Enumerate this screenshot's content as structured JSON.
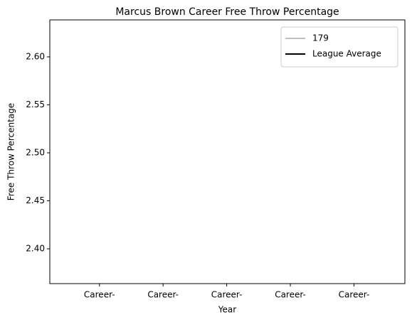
{
  "chart_data": {
    "type": "line",
    "title": "Marcus Brown Career Free Throw Percentage",
    "x_label": "Year",
    "y_label": "Free Throw Percentage",
    "categories": [
      "Career-",
      "Career-",
      "Career-",
      "Career-",
      "Career-"
    ],
    "series": [
      {
        "name": "179",
        "color": "#c0c0c0",
        "values": [
          null,
          null,
          null,
          null,
          null
        ]
      },
      {
        "name": "League Average",
        "color": "#000000",
        "values": [
          null,
          null,
          null,
          null,
          null
        ]
      }
    ],
    "ylim": [
      2.3637,
      2.6385
    ],
    "yticks": [
      {
        "value": 2.4,
        "label": "2.40"
      },
      2.45,
      {
        "value": 2.5,
        "label": "2.50"
      },
      2.55,
      {
        "value": 2.6,
        "label": "2.60"
      }
    ],
    "legend": "upper right",
    "grid": false
  }
}
